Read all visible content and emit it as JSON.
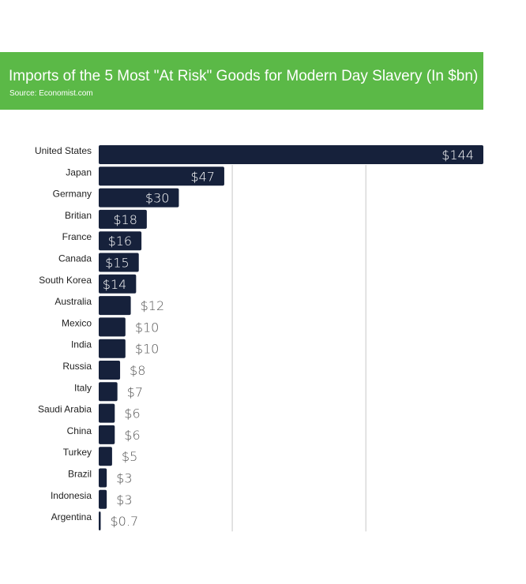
{
  "header": {
    "title": "Imports of the 5 Most \"At Risk\" Goods for Modern Day Slavery (In $bn)",
    "source": "Source: Economist.com"
  },
  "colors": {
    "banner": "#5bb947",
    "bar": "#16213b",
    "gridline": "#c8c8c8",
    "label_inside": "#ffffff",
    "label_outside": "#555555"
  },
  "chart_data": {
    "type": "bar",
    "orientation": "horizontal",
    "title": "Imports of the 5 Most \"At Risk\" Goods for Modern Day Slavery (In $bn)",
    "categories": [
      "United States",
      "Japan",
      "Germany",
      "Britian",
      "France",
      "Canada",
      "South Korea",
      "Australia",
      "Mexico",
      "India",
      "Russia",
      "Italy",
      "Saudi Arabia",
      "China",
      "Turkey",
      "Brazil",
      "Indonesia",
      "Argentina"
    ],
    "values": [
      144,
      47,
      30,
      18,
      16,
      15,
      14,
      12,
      10,
      10,
      8,
      7,
      6,
      6,
      5,
      3,
      3,
      0.7
    ],
    "value_labels": [
      "$144",
      "$47",
      "$30",
      "$18",
      "$16",
      "$15",
      "$14",
      "$12",
      "$10",
      "$10",
      "$8",
      "$7",
      "$6",
      "$6",
      "$5",
      "$3",
      "$3",
      "$0.7"
    ],
    "xlim": [
      0,
      144
    ],
    "gridlines_at": [
      50,
      100
    ],
    "grid": true,
    "legend": "none"
  }
}
